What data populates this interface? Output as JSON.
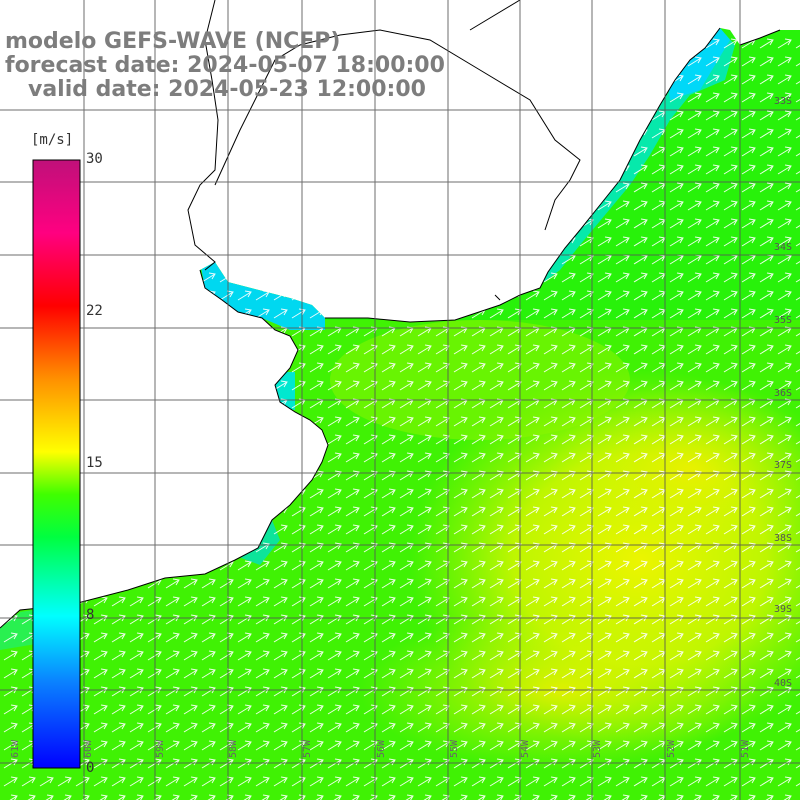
{
  "title": {
    "line1": "modelo GEFS-WAVE (NCEP)",
    "line2": "forecast date: 2024-05-07 18:00:00",
    "line3": "   valid date: 2024-05-23 12:00:00"
  },
  "colorbar": {
    "unit": "[m/s]",
    "ticks": [
      "30",
      "22",
      "15",
      "8",
      "0"
    ],
    "colors": [
      "#0000ff",
      "#0a80ff",
      "#00ffff",
      "#00ff40",
      "#40ff00",
      "#ffff00",
      "#ff9000",
      "#ff0000",
      "#ff0080",
      "#c0107a"
    ]
  },
  "map": {
    "lat_labels": [
      "33S",
      "34S",
      "35S",
      "36S",
      "37S",
      "38S",
      "39S",
      "40S"
    ],
    "lon_labels": [
      "61W",
      "60W",
      "59W",
      "58W",
      "57W",
      "56W",
      "55W",
      "54W",
      "53W",
      "52W",
      "51W"
    ],
    "wind_direction": "from south-west",
    "coast_color": "#000000",
    "grid_color": "#555555",
    "arrow_color": "#ffffff"
  }
}
